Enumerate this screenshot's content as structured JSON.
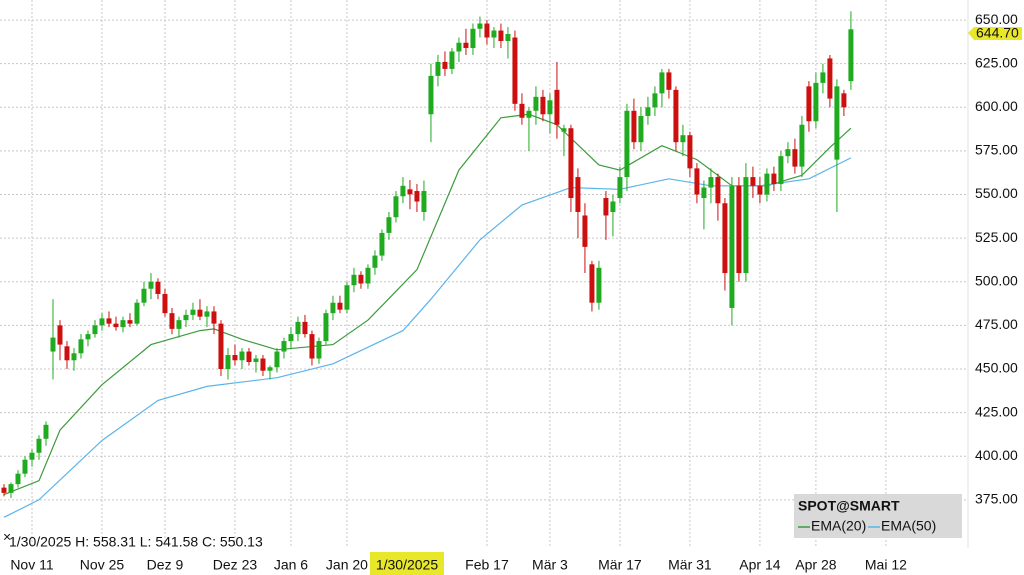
{
  "chart_data": {
    "type": "candlestick",
    "info_text": "1/30/2025 H: 558.31 L: 541.58 C: 550.13",
    "crosshair_label": "1/30/2025",
    "legend_title": "SPOT@SMART",
    "last_price": 644.7,
    "last_price_label": "644.70",
    "up_color": "#1faa1f",
    "down_color": "#cc1010",
    "open": [
      382,
      379,
      384,
      390,
      398,
      402,
      410,
      460,
      475,
      463,
      455,
      459,
      467,
      470,
      475,
      479,
      476,
      474,
      478,
      476,
      488,
      496,
      500,
      493,
      482,
      473,
      478,
      481,
      484,
      480,
      483,
      476,
      450,
      458,
      455,
      460,
      454,
      456,
      449,
      451,
      460,
      466,
      470,
      477,
      470,
      456,
      466,
      482,
      488,
      484,
      498,
      504,
      499,
      508,
      515,
      528,
      537,
      549,
      553,
      552,
      540,
      596,
      618,
      626,
      622,
      632,
      637,
      634,
      645,
      648,
      640,
      644,
      638,
      640,
      602,
      594,
      598,
      606,
      596,
      610,
      586,
      588,
      560,
      538,
      510,
      488,
      548,
      540,
      548,
      560,
      598,
      580,
      595,
      600,
      608,
      620,
      610,
      580,
      584,
      565,
      548,
      554,
      560,
      545,
      485,
      555,
      505,
      560,
      555,
      550,
      562,
      556,
      572,
      576,
      566,
      612,
      592,
      614,
      628,
      570,
      608,
      615
    ],
    "high": [
      384,
      385,
      392,
      400,
      404,
      412,
      420,
      490,
      478,
      466,
      462,
      470,
      472,
      478,
      482,
      483,
      480,
      480,
      482,
      490,
      500,
      505,
      502,
      496,
      485,
      480,
      484,
      488,
      490,
      486,
      486,
      478,
      462,
      464,
      462,
      462,
      458,
      458,
      452,
      462,
      468,
      474,
      480,
      481,
      472,
      468,
      484,
      492,
      492,
      500,
      508,
      506,
      510,
      518,
      530,
      540,
      552,
      560,
      558.31,
      556,
      558,
      625,
      630,
      632,
      634,
      640,
      645,
      648,
      652,
      650,
      646,
      648,
      646,
      644,
      608,
      600,
      612,
      610,
      608,
      626,
      590,
      590,
      565,
      545,
      512,
      512,
      552,
      550,
      566,
      602,
      605,
      600,
      606,
      612,
      622,
      622,
      612,
      590,
      586,
      568,
      558,
      565,
      562,
      548,
      560,
      560,
      568,
      566,
      560,
      565,
      566,
      575,
      580,
      582,
      595,
      615,
      620,
      625,
      630,
      616,
      610,
      655
    ],
    "low": [
      377,
      376,
      382,
      388,
      394,
      398,
      406,
      444,
      455,
      450,
      449,
      456,
      463,
      468,
      472,
      474,
      472,
      471,
      474,
      475,
      486,
      490,
      490,
      480,
      470,
      468,
      474,
      478,
      478,
      474,
      470,
      446,
      444,
      452,
      450,
      452,
      448,
      446,
      444,
      448,
      456,
      462,
      466,
      468,
      452,
      453,
      464,
      478,
      482,
      482,
      494,
      496,
      496,
      504,
      512,
      524,
      534,
      545,
      541.58,
      540,
      535,
      580,
      612,
      618,
      619,
      626,
      630,
      630,
      640,
      636,
      634,
      634,
      628,
      598,
      590,
      575,
      590,
      592,
      585,
      582,
      572,
      540,
      525,
      505,
      483,
      484,
      524,
      526,
      545,
      552,
      576,
      575,
      590,
      595,
      600,
      605,
      575,
      572,
      560,
      545,
      530,
      545,
      535,
      495,
      475,
      500,
      500,
      548,
      545,
      546,
      552,
      552,
      568,
      562,
      560,
      586,
      588,
      608,
      600,
      540,
      595,
      610
    ],
    "close": [
      379,
      384,
      390,
      398,
      402,
      410,
      418,
      468,
      464,
      455,
      459,
      467,
      470,
      475,
      479,
      476,
      474,
      478,
      476,
      488,
      496,
      500,
      493,
      482,
      473,
      478,
      481,
      484,
      480,
      483,
      476,
      450,
      458,
      455,
      460,
      454,
      456,
      449,
      451,
      460,
      466,
      470,
      477,
      470,
      456,
      466,
      482,
      488,
      484,
      498,
      504,
      499,
      508,
      515,
      528,
      537,
      549,
      555,
      550.13,
      546,
      552,
      618,
      626,
      622,
      632,
      637,
      634,
      645,
      648,
      640,
      644,
      638,
      642,
      602,
      594,
      598,
      606,
      596,
      604,
      590,
      588,
      548,
      540,
      520,
      488,
      508,
      538,
      546,
      560,
      598,
      580,
      595,
      600,
      608,
      620,
      610,
      580,
      584,
      565,
      550,
      554,
      560,
      545,
      505,
      555,
      505,
      560,
      555,
      550,
      562,
      556,
      572,
      576,
      566,
      590,
      592,
      614,
      620,
      605,
      612,
      600,
      644.7
    ],
    "series": [
      {
        "name": "EMA(20)",
        "color": "#3d9b3d",
        "x": [
          0,
          5,
          8,
          14,
          21,
          28,
          30,
          34,
          39,
          47,
          52,
          59,
          65,
          71,
          75,
          79,
          85,
          88,
          94,
          99,
          104,
          109,
          114,
          118,
          121
        ],
        "values": [
          378,
          386,
          415,
          441,
          464,
          472,
          473,
          467,
          461,
          464,
          478,
          507,
          564,
          594,
          596,
          590,
          567,
          564,
          578,
          570,
          555,
          555,
          561,
          577,
          588
        ]
      },
      {
        "name": "EMA(50)",
        "color": "#5ab4ea",
        "x": [
          0,
          5,
          14,
          22,
          29,
          39,
          47,
          57,
          61,
          68,
          74,
          81,
          88,
          95,
          101,
          108,
          115,
          121
        ],
        "values": [
          365,
          375,
          409,
          432,
          440,
          445,
          453,
          472,
          490,
          524,
          544,
          554,
          553,
          559,
          555,
          555,
          559,
          571
        ]
      }
    ],
    "xlim": [
      -0.57,
      137.3
    ],
    "xticks": [
      {
        "value": 4,
        "label": "Nov 11"
      },
      {
        "value": 14,
        "label": "Nov 25"
      },
      {
        "value": 23,
        "label": "Dez 9"
      },
      {
        "value": 33,
        "label": "Dez 23"
      },
      {
        "value": 41,
        "label": "Jan 6"
      },
      {
        "value": 49,
        "label": "Jan 20"
      },
      {
        "value": 69,
        "label": "Feb 17"
      },
      {
        "value": 78,
        "label": "Mär 3"
      },
      {
        "value": 88,
        "label": "Mär 17"
      },
      {
        "value": 98,
        "label": "Mär 31"
      },
      {
        "value": 108,
        "label": "Apr 14"
      },
      {
        "value": 116,
        "label": "Apr 28"
      },
      {
        "value": 126,
        "label": "Mai 12"
      }
    ],
    "ylim": [
      347.4,
      661.5
    ],
    "yticks": [
      {
        "value": 375,
        "label": "375.00"
      },
      {
        "value": 400,
        "label": "400.00"
      },
      {
        "value": 425,
        "label": "425.00"
      },
      {
        "value": 450,
        "label": "450.00"
      },
      {
        "value": 475,
        "label": "475.00"
      },
      {
        "value": 500,
        "label": "500.00"
      },
      {
        "value": 525,
        "label": "525.00"
      },
      {
        "value": 550,
        "label": "550.00"
      },
      {
        "value": 575,
        "label": "575.00"
      },
      {
        "value": 600,
        "label": "600.00"
      },
      {
        "value": 625,
        "label": "625.00"
      },
      {
        "value": 650,
        "label": "650.00"
      }
    ],
    "grid": true
  }
}
